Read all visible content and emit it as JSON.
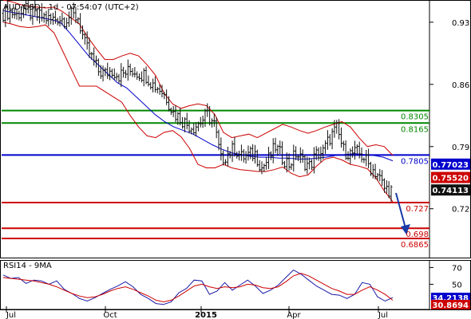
{
  "colors": {
    "price": "#111111",
    "bollinger": "#cc0000",
    "ma": "#0000cc",
    "support": "#cc0000",
    "resistance": "#008800",
    "pivot": "#0000cc",
    "rsi": "#1a1aa6",
    "rsi_ma": "#cc0000",
    "arrow": "#1a3aa6",
    "badge_blue": "#0000cc",
    "badge_red": "#cc0000",
    "badge_black": "#111111",
    "grid": "#cccccc"
  },
  "chart_data": [
    {
      "type": "candlestick",
      "title": "AUD/USD - 1d - 07:54:07 (UTC+2)",
      "xlabel": "",
      "ylabel": "",
      "x_tick_labels": [
        "Jul",
        "Oct",
        "2015",
        "Apr",
        "Jul"
      ],
      "y_tick_labels": [
        "0.93",
        "0.86",
        "0.79",
        "0.72"
      ],
      "ylim": [
        0.665,
        0.955
      ],
      "grid": false,
      "series": [
        {
          "name": "Price",
          "style": "ohlc-bars",
          "values": [
            0.94,
            0.942,
            0.938,
            0.945,
            0.94,
            0.937,
            0.936,
            0.932,
            0.935,
            0.933,
            0.938,
            0.935,
            0.905,
            0.89,
            0.875,
            0.872,
            0.876,
            0.87,
            0.873,
            0.876,
            0.872,
            0.87,
            0.86,
            0.855,
            0.845,
            0.828,
            0.822,
            0.815,
            0.812,
            0.818,
            0.826,
            0.815,
            0.775,
            0.782,
            0.788,
            0.778,
            0.78,
            0.782,
            0.766,
            0.776,
            0.79,
            0.778,
            0.77,
            0.782,
            0.774,
            0.768,
            0.781,
            0.784,
            0.8,
            0.81,
            0.786,
            0.782,
            0.783,
            0.778,
            0.766,
            0.759,
            0.743,
            0.741
          ]
        },
        {
          "name": "Bollinger upper",
          "values": [
            0.955,
            0.953,
            0.95,
            0.948,
            0.947,
            0.946,
            0.947,
            0.942,
            0.935,
            0.928,
            0.913,
            0.9,
            0.888,
            0.888,
            0.892,
            0.895,
            0.892,
            0.882,
            0.87,
            0.85,
            0.838,
            0.833,
            0.836,
            0.838,
            0.836,
            0.826,
            0.806,
            0.8,
            0.802,
            0.804,
            0.8,
            0.805,
            0.81,
            0.815,
            0.812,
            0.808,
            0.805,
            0.808,
            0.812,
            0.815,
            0.818,
            0.812,
            0.8,
            0.79,
            0.792,
            0.79,
            0.78
          ]
        },
        {
          "name": "Bollinger lower",
          "values": [
            0.93,
            0.928,
            0.925,
            0.924,
            0.925,
            0.927,
            0.918,
            0.898,
            0.878,
            0.858,
            0.858,
            0.858,
            0.852,
            0.846,
            0.84,
            0.825,
            0.812,
            0.802,
            0.8,
            0.806,
            0.808,
            0.801,
            0.788,
            0.77,
            0.766,
            0.766,
            0.77,
            0.766,
            0.764,
            0.763,
            0.762,
            0.762,
            0.764,
            0.767,
            0.76,
            0.756,
            0.758,
            0.768,
            0.776,
            0.778,
            0.775,
            0.77,
            0.768,
            0.765,
            0.755,
            0.74,
            0.728
          ]
        },
        {
          "name": "Moving average",
          "values": [
            0.943,
            0.941,
            0.939,
            0.937,
            0.935,
            0.933,
            0.93,
            0.918,
            0.905,
            0.892,
            0.882,
            0.872,
            0.862,
            0.856,
            0.846,
            0.836,
            0.826,
            0.818,
            0.812,
            0.808,
            0.804,
            0.798,
            0.792,
            0.787,
            0.783,
            0.781,
            0.779,
            0.778,
            0.778,
            0.777,
            0.777,
            0.776,
            0.776,
            0.777,
            0.778,
            0.78,
            0.781,
            0.782,
            0.781,
            0.78,
            0.778,
            0.774
          ]
        }
      ],
      "horizontal_levels": [
        {
          "label": "0.8305",
          "value": 0.8305,
          "color": "green"
        },
        {
          "label": "0.8165",
          "value": 0.8165,
          "color": "green"
        },
        {
          "label": "0.7805",
          "value": 0.7805,
          "color": "blue"
        },
        {
          "label": "0.727",
          "value": 0.727,
          "color": "red"
        },
        {
          "label": "0.698",
          "value": 0.698,
          "color": "red"
        },
        {
          "label": "0.6865",
          "value": 0.6865,
          "color": "red"
        }
      ],
      "badges": [
        {
          "label": "0.77023",
          "value": 0.77023,
          "color": "blue"
        },
        {
          "label": "0.75520",
          "value": 0.7552,
          "color": "red"
        },
        {
          "label": "0.74113",
          "value": 0.74113,
          "color": "black"
        }
      ],
      "annotations": [
        "downward arrow projecting from 0.74 toward 0.70"
      ]
    },
    {
      "type": "line",
      "title": "RSI14 - 9MA",
      "xlabel": "",
      "ylabel": "",
      "y_tick_labels": [
        "70",
        "50"
      ],
      "ylim": [
        20,
        78
      ],
      "grid": false,
      "series": [
        {
          "name": "RSI14",
          "values": [
            61,
            57,
            58,
            51,
            55,
            54,
            50,
            54,
            44,
            39,
            33,
            30,
            34,
            39,
            44,
            48,
            53,
            47,
            38,
            33,
            27,
            26,
            29,
            40,
            45,
            55,
            54,
            38,
            42,
            52,
            43,
            49,
            55,
            48,
            39,
            43,
            49,
            58,
            67,
            62,
            55,
            48,
            43,
            38,
            37,
            33,
            38,
            52,
            50,
            35,
            30,
            34.2
          ]
        },
        {
          "name": "9MA",
          "values": [
            58,
            57,
            56,
            55,
            54,
            52,
            50,
            47,
            43,
            39,
            36,
            34,
            35,
            38,
            42,
            45,
            47,
            44,
            40,
            36,
            31,
            29,
            31,
            36,
            42,
            48,
            50,
            47,
            45,
            47,
            46,
            47,
            50,
            49,
            46,
            45,
            47,
            53,
            60,
            63,
            60,
            55,
            50,
            45,
            42,
            38,
            38,
            43,
            47,
            43,
            38,
            30.9
          ]
        }
      ],
      "badges": [
        {
          "label": "34.2138",
          "value": 34.2138,
          "color": "blue"
        },
        {
          "label": "30.8694",
          "value": 30.8694,
          "color": "red"
        }
      ]
    }
  ]
}
